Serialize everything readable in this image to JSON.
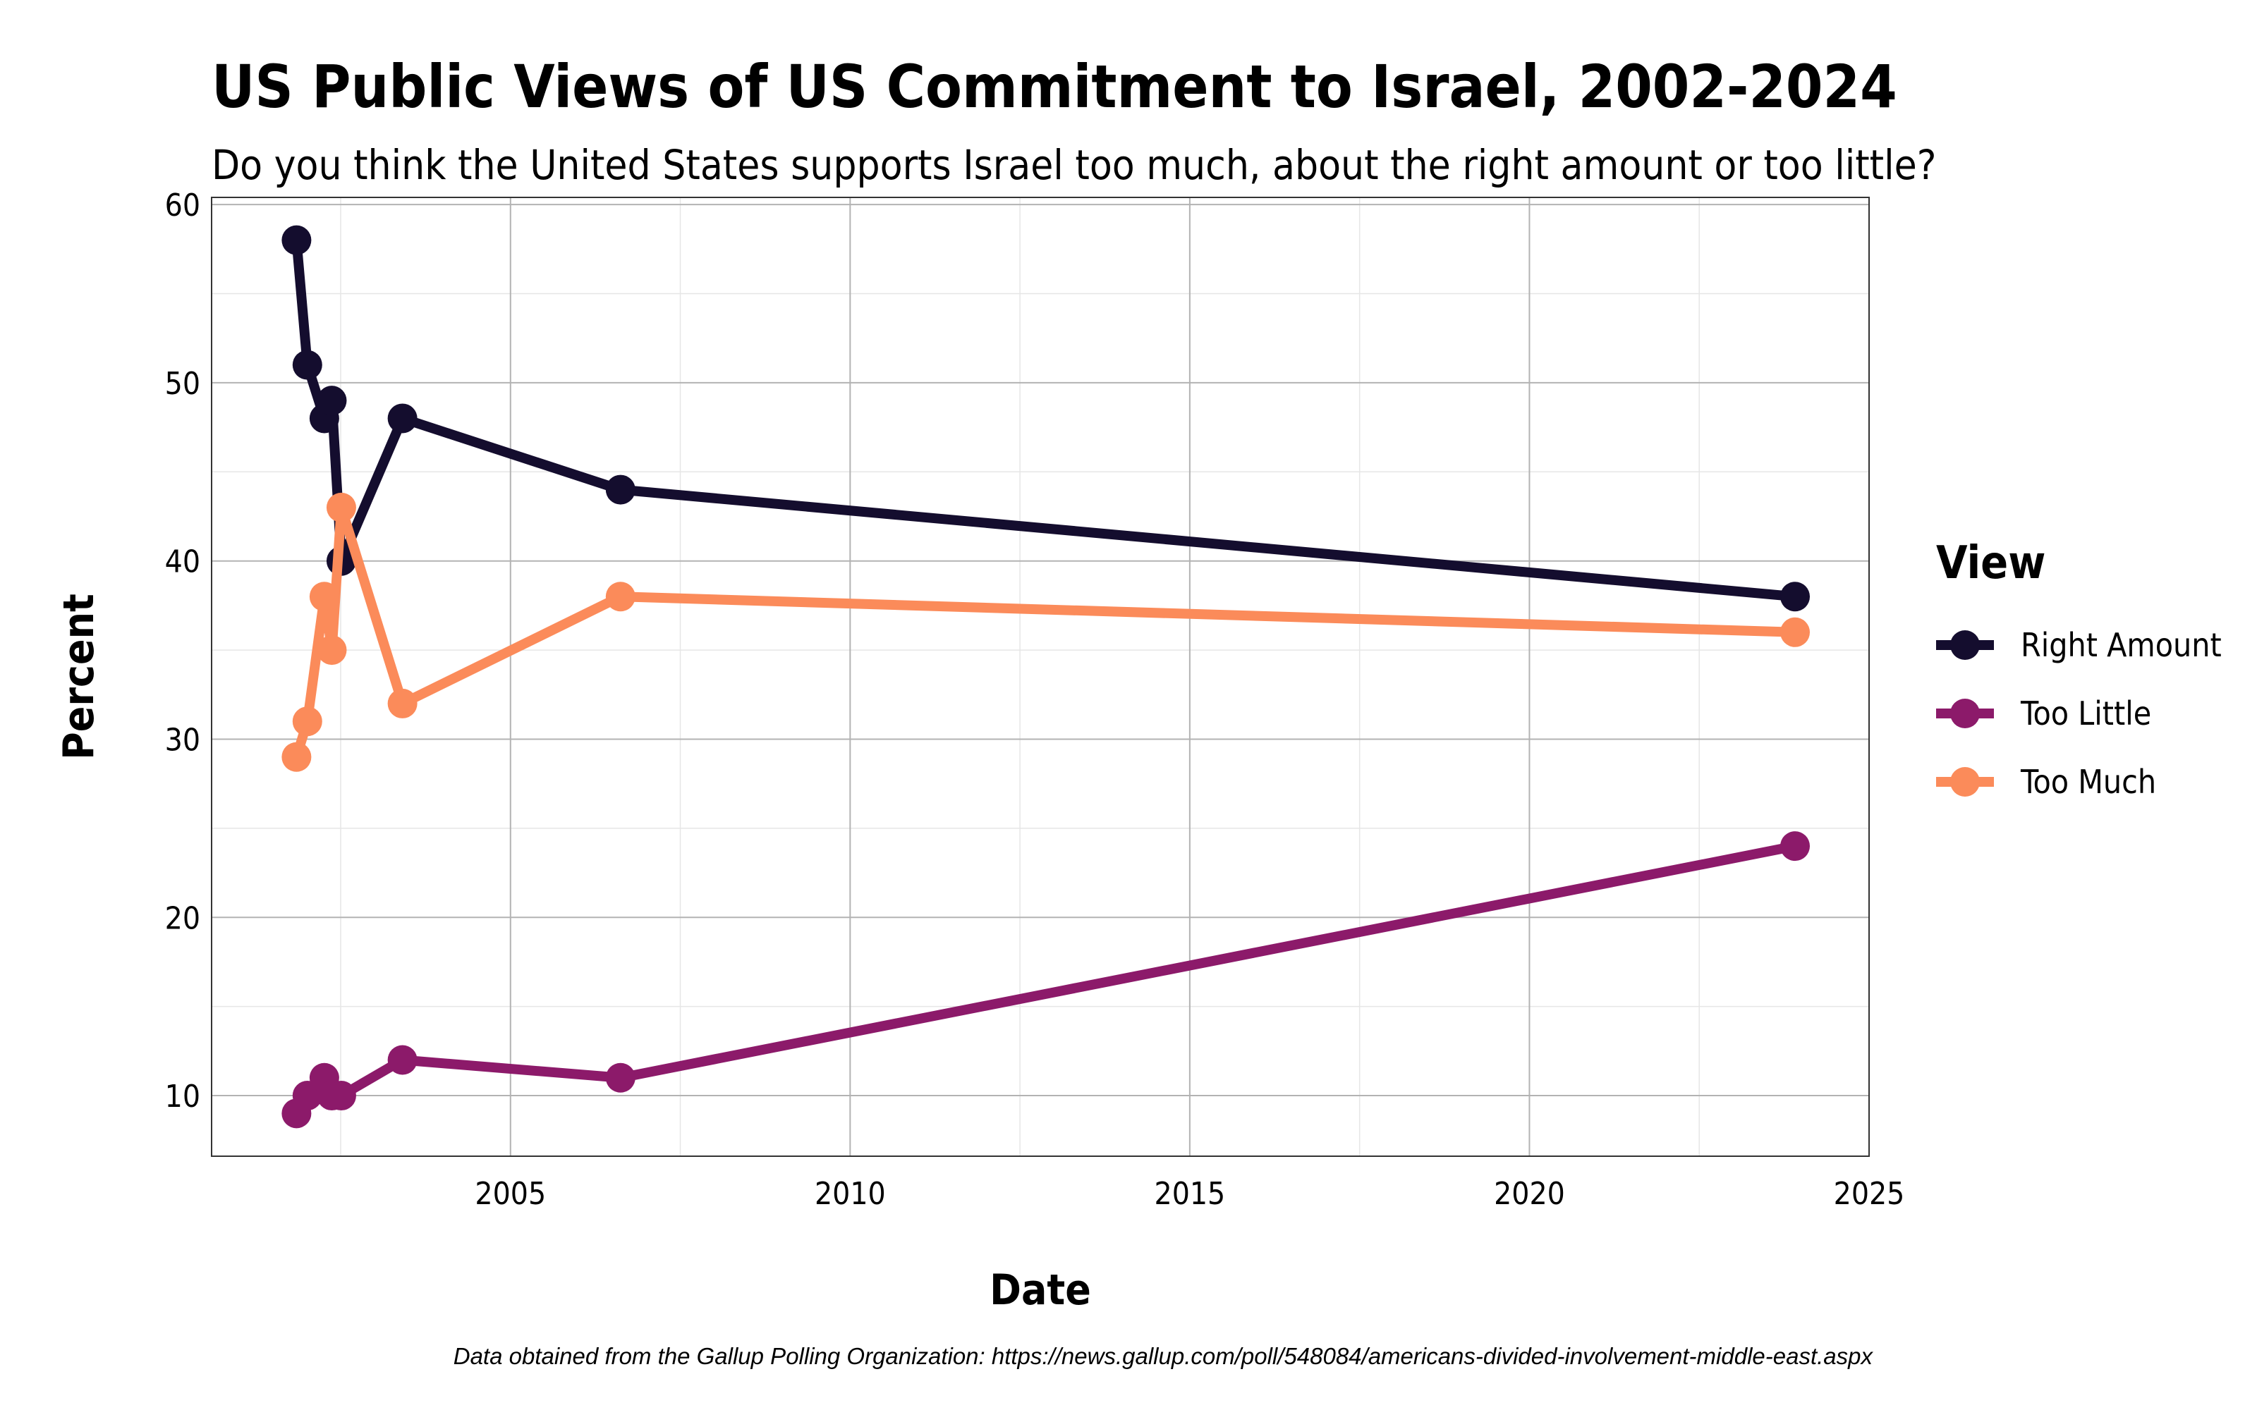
{
  "chart_data": {
    "type": "line",
    "title": "US Public Views of US Commitment to Israel, 2002-2024",
    "subtitle": "Do you think the United States supports Israel too much, about the right amount or too little?",
    "xlabel": "Date",
    "ylabel": "Percent",
    "xlim": [
      2000.6,
      2025.0
    ],
    "ylim": [
      6.6,
      60.4
    ],
    "x_ticks": [
      2005,
      2010,
      2015,
      2020,
      2025
    ],
    "y_ticks": [
      10,
      20,
      30,
      40,
      50,
      60
    ],
    "grid": true,
    "legend": {
      "title": "View",
      "position": "right"
    },
    "caption": "Data obtained from the Gallup Polling Organization: https://news.gallup.com/poll/548084/americans-divided-involvement-middle-east.aspx",
    "series": [
      {
        "name": "Right Amount",
        "color": "#140D2E",
        "x": [
          2001.85,
          2002.01,
          2002.26,
          2002.37,
          2002.51,
          2003.41,
          2006.62,
          2023.91
        ],
        "values": [
          58,
          51,
          48,
          49,
          40,
          48,
          44,
          38
        ]
      },
      {
        "name": "Too Little",
        "color": "#8C1A6A",
        "x": [
          2001.85,
          2002.01,
          2002.26,
          2002.37,
          2002.51,
          2003.41,
          2006.62,
          2023.91
        ],
        "values": [
          9,
          10,
          11,
          10,
          10,
          12,
          11,
          24
        ]
      },
      {
        "name": "Too Much",
        "color": "#FB8B5A",
        "x": [
          2001.85,
          2002.01,
          2002.26,
          2002.37,
          2002.51,
          2003.41,
          2006.62,
          2023.91
        ],
        "values": [
          29,
          31,
          38,
          35,
          43,
          32,
          38,
          36
        ]
      }
    ]
  }
}
